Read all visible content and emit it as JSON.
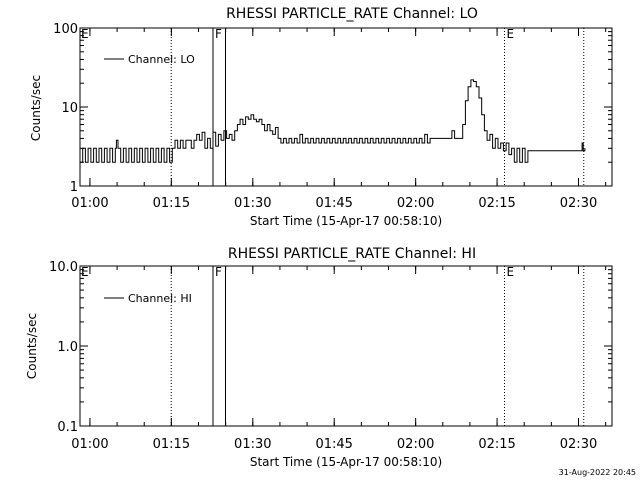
{
  "footer": {
    "timestamp": "31-Aug-2022 20:45"
  },
  "chart_data": [
    {
      "type": "line",
      "title": "RHESSI PARTICLE_RATE Channel: LO",
      "xlabel": "Start Time (15-Apr-17 00:58:10)",
      "ylabel": "Counts/sec",
      "yscale": "log",
      "ylim": [
        1,
        100
      ],
      "xlim_minutes_after_start": [
        0,
        98
      ],
      "xticks": [
        {
          "t": 1.83,
          "label": "01:00"
        },
        {
          "t": 16.83,
          "label": "01:15"
        },
        {
          "t": 31.83,
          "label": "01:30"
        },
        {
          "t": 46.83,
          "label": "01:45"
        },
        {
          "t": 61.83,
          "label": "02:00"
        },
        {
          "t": 76.83,
          "label": "02:15"
        },
        {
          "t": 91.83,
          "label": "02:30"
        }
      ],
      "yticks": [
        {
          "v": 1,
          "label": "1"
        },
        {
          "v": 10,
          "label": "10"
        },
        {
          "v": 100,
          "label": "100"
        }
      ],
      "legend": {
        "label": "Channel: LO",
        "position": "top-left"
      },
      "markers": [
        {
          "t": 16.8,
          "style": "dotted",
          "label": ""
        },
        {
          "t": 24.5,
          "style": "solid",
          "label": "F"
        },
        {
          "t": 26.8,
          "style": "solid",
          "label": ""
        },
        {
          "t": 78.2,
          "style": "dotted",
          "label": "E"
        },
        {
          "t": 92.8,
          "style": "dotted",
          "label": ""
        }
      ],
      "corner_label": "E",
      "series": [
        {
          "name": "Channel: LO",
          "points": [
            [
              0,
              2
            ],
            [
              0.5,
              3
            ],
            [
              1,
              2
            ],
            [
              1.5,
              3
            ],
            [
              2,
              2
            ],
            [
              2.5,
              3
            ],
            [
              3,
              2
            ],
            [
              3.5,
              3
            ],
            [
              4,
              2
            ],
            [
              4.5,
              3
            ],
            [
              5,
              2
            ],
            [
              5.5,
              3
            ],
            [
              6,
              2
            ],
            [
              6.5,
              3
            ],
            [
              6.7,
              3.8
            ],
            [
              7,
              3
            ],
            [
              7.5,
              2
            ],
            [
              8,
              3
            ],
            [
              8.5,
              2
            ],
            [
              9,
              3
            ],
            [
              9.5,
              2
            ],
            [
              10,
              3
            ],
            [
              10.5,
              2
            ],
            [
              11,
              3
            ],
            [
              11.5,
              2
            ],
            [
              12,
              3
            ],
            [
              12.5,
              2
            ],
            [
              13,
              3
            ],
            [
              13.5,
              2
            ],
            [
              14,
              3
            ],
            [
              14.5,
              2
            ],
            [
              15,
              3
            ],
            [
              15.5,
              2
            ],
            [
              16,
              3
            ],
            [
              16.5,
              2
            ],
            [
              17,
              3
            ],
            [
              17.5,
              3.8
            ],
            [
              18,
              3
            ],
            [
              18.5,
              3.8
            ],
            [
              19,
              3
            ],
            [
              19.5,
              3.8
            ],
            [
              20,
              3.8
            ],
            [
              20.5,
              3
            ],
            [
              21,
              3.8
            ],
            [
              21.5,
              4.5
            ],
            [
              22,
              3.8
            ],
            [
              22.5,
              4.8
            ],
            [
              23,
              3
            ],
            [
              23.5,
              4
            ],
            [
              24,
              3
            ],
            [
              24.5,
              4.8
            ],
            [
              25,
              3.2
            ],
            [
              25.5,
              4.5
            ],
            [
              26,
              3.8
            ],
            [
              26.5,
              5
            ],
            [
              27,
              4
            ],
            [
              27.5,
              4.5
            ],
            [
              28,
              3.8
            ],
            [
              28.5,
              5
            ],
            [
              29,
              6
            ],
            [
              29.5,
              7
            ],
            [
              30,
              6
            ],
            [
              30.5,
              7.5
            ],
            [
              31,
              7
            ],
            [
              31.5,
              8
            ],
            [
              32,
              7
            ],
            [
              32.5,
              6.5
            ],
            [
              33,
              7
            ],
            [
              33.5,
              6
            ],
            [
              34,
              5
            ],
            [
              34.5,
              6
            ],
            [
              35,
              5
            ],
            [
              35.5,
              4.5
            ],
            [
              36,
              5.5
            ],
            [
              36.5,
              4
            ],
            [
              37,
              3.5
            ],
            [
              37.5,
              4
            ],
            [
              38,
              3.5
            ],
            [
              38.5,
              4
            ],
            [
              39,
              3.5
            ],
            [
              39.5,
              4
            ],
            [
              40,
              3.5
            ],
            [
              40.5,
              4.5
            ],
            [
              41,
              3.5
            ],
            [
              41.5,
              4
            ],
            [
              42,
              3.5
            ],
            [
              42.5,
              4
            ],
            [
              43,
              3.5
            ],
            [
              43.5,
              4
            ],
            [
              44,
              3.5
            ],
            [
              44.5,
              4
            ],
            [
              45,
              3.5
            ],
            [
              45.5,
              4
            ],
            [
              46,
              3.5
            ],
            [
              46.5,
              4
            ],
            [
              47,
              3.5
            ],
            [
              47.5,
              4
            ],
            [
              48,
              3.5
            ],
            [
              48.5,
              4
            ],
            [
              49,
              3.5
            ],
            [
              49.5,
              4
            ],
            [
              50,
              3.5
            ],
            [
              50.5,
              4
            ],
            [
              51,
              3.5
            ],
            [
              51.5,
              4
            ],
            [
              52,
              3.5
            ],
            [
              52.5,
              4
            ],
            [
              53,
              3.5
            ],
            [
              53.5,
              4
            ],
            [
              54,
              3.5
            ],
            [
              54.5,
              4
            ],
            [
              55,
              3.5
            ],
            [
              55.5,
              4
            ],
            [
              56,
              3.5
            ],
            [
              56.5,
              4
            ],
            [
              57,
              3.5
            ],
            [
              57.5,
              4
            ],
            [
              58,
              3.5
            ],
            [
              58.5,
              4
            ],
            [
              59,
              3.5
            ],
            [
              59.5,
              4
            ],
            [
              60,
              3.5
            ],
            [
              60.5,
              4
            ],
            [
              61,
              3.5
            ],
            [
              61.5,
              4
            ],
            [
              62,
              3.5
            ],
            [
              62.5,
              4
            ],
            [
              63,
              3.5
            ],
            [
              63.5,
              4.5
            ],
            [
              64,
              3.5
            ],
            [
              64.5,
              4
            ],
            [
              65,
              4
            ],
            [
              66,
              4
            ],
            [
              67,
              4
            ],
            [
              68,
              4
            ],
            [
              68.5,
              5
            ],
            [
              69,
              4
            ],
            [
              70,
              4
            ],
            [
              70.5,
              6
            ],
            [
              71,
              12
            ],
            [
              71.5,
              18
            ],
            [
              72,
              22
            ],
            [
              72.5,
              21
            ],
            [
              73,
              18
            ],
            [
              73.5,
              13
            ],
            [
              74,
              8
            ],
            [
              74.5,
              5
            ],
            [
              75,
              3.8
            ],
            [
              75.5,
              4.5
            ],
            [
              76,
              3
            ],
            [
              76.5,
              4
            ],
            [
              77,
              3
            ],
            [
              77.5,
              3.5
            ],
            [
              78,
              2.8
            ],
            [
              78.5,
              3.5
            ],
            [
              79,
              2.5
            ],
            [
              79.5,
              3
            ],
            [
              80,
              2
            ],
            [
              80.5,
              3
            ],
            [
              81,
              2
            ],
            [
              81.5,
              3
            ],
            [
              82,
              2
            ],
            [
              82.5,
              2.8
            ],
            [
              83,
              2.8
            ],
            [
              84,
              2.8
            ],
            [
              85,
              2.8
            ],
            [
              86,
              2.8
            ],
            [
              87,
              2.8
            ],
            [
              88,
              2.8
            ],
            [
              89,
              2.8
            ],
            [
              90,
              2.8
            ],
            [
              91,
              2.8
            ],
            [
              92,
              2.8
            ],
            [
              92.5,
              3.5
            ],
            [
              92.7,
              2.8
            ],
            [
              93,
              3
            ]
          ]
        }
      ]
    },
    {
      "type": "line",
      "title": "RHESSI PARTICLE_RATE Channel: HI",
      "xlabel": "Start Time (15-Apr-17 00:58:10)",
      "ylabel": "Counts/sec",
      "yscale": "log",
      "ylim": [
        0.1,
        10
      ],
      "xlim_minutes_after_start": [
        0,
        98
      ],
      "xticks": [
        {
          "t": 1.83,
          "label": "01:00"
        },
        {
          "t": 16.83,
          "label": "01:15"
        },
        {
          "t": 31.83,
          "label": "01:30"
        },
        {
          "t": 46.83,
          "label": "01:45"
        },
        {
          "t": 61.83,
          "label": "02:00"
        },
        {
          "t": 76.83,
          "label": "02:15"
        },
        {
          "t": 91.83,
          "label": "02:30"
        }
      ],
      "yticks": [
        {
          "v": 0.1,
          "label": "0.1"
        },
        {
          "v": 1,
          "label": "1.0"
        },
        {
          "v": 10,
          "label": "10.0"
        }
      ],
      "legend": {
        "label": "Channel: HI",
        "position": "top-left"
      },
      "markers": [
        {
          "t": 16.8,
          "style": "dotted",
          "label": ""
        },
        {
          "t": 24.5,
          "style": "solid",
          "label": "F"
        },
        {
          "t": 26.8,
          "style": "solid",
          "label": ""
        },
        {
          "t": 78.2,
          "style": "dotted",
          "label": "E"
        },
        {
          "t": 92.8,
          "style": "dotted",
          "label": ""
        }
      ],
      "corner_label": "E",
      "series": [
        {
          "name": "Channel: HI",
          "points": []
        }
      ]
    }
  ]
}
